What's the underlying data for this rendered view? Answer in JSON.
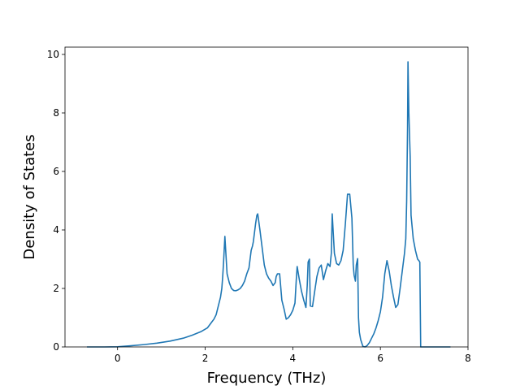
{
  "chart_data": {
    "type": "line",
    "title": "",
    "xlabel": "Frequency (THz)",
    "ylabel": "Density of States",
    "xlim": [
      -1.2,
      8
    ],
    "ylim": [
      0,
      10.25
    ],
    "xticks": [
      0,
      2,
      4,
      6,
      8
    ],
    "yticks": [
      0,
      2,
      4,
      6,
      8,
      10
    ],
    "grid": false,
    "line_color": "#1f77b4",
    "series": [
      {
        "name": "",
        "x": [
          -0.7,
          -0.3,
          0,
          0.3,
          0.6,
          0.9,
          1.2,
          1.5,
          1.7,
          1.9,
          2.05,
          2.15,
          2.2,
          2.25,
          2.3,
          2.35,
          2.38,
          2.4,
          2.42,
          2.45,
          2.5,
          2.55,
          2.6,
          2.65,
          2.7,
          2.75,
          2.8,
          2.85,
          2.9,
          2.95,
          3.0,
          3.05,
          3.08,
          3.1,
          3.15,
          3.18,
          3.2,
          3.25,
          3.3,
          3.35,
          3.4,
          3.45,
          3.5,
          3.55,
          3.6,
          3.62,
          3.65,
          3.7,
          3.75,
          3.8,
          3.85,
          3.9,
          3.95,
          4.0,
          4.05,
          4.08,
          4.1,
          4.15,
          4.2,
          4.25,
          4.3,
          4.33,
          4.35,
          4.38,
          4.4,
          4.45,
          4.5,
          4.55,
          4.6,
          4.65,
          4.7,
          4.75,
          4.8,
          4.85,
          4.88,
          4.9,
          4.95,
          5.0,
          5.05,
          5.1,
          5.15,
          5.2,
          5.25,
          5.3,
          5.35,
          5.38,
          5.4,
          5.43,
          5.45,
          5.48,
          5.5,
          5.52,
          5.55,
          5.6,
          5.65,
          5.7,
          5.75,
          5.8,
          5.85,
          5.9,
          5.95,
          6.0,
          6.05,
          6.1,
          6.15,
          6.2,
          6.25,
          6.3,
          6.35,
          6.4,
          6.45,
          6.5,
          6.55,
          6.58,
          6.6,
          6.62,
          6.63,
          6.65,
          6.68,
          6.7,
          6.75,
          6.8,
          6.85,
          6.88,
          6.9,
          6.92,
          7.0,
          7.3,
          7.6
        ],
        "y": [
          0,
          0,
          0.005,
          0.04,
          0.08,
          0.13,
          0.2,
          0.3,
          0.4,
          0.52,
          0.65,
          0.85,
          0.95,
          1.1,
          1.4,
          1.7,
          2.0,
          2.4,
          2.9,
          3.78,
          2.5,
          2.2,
          2.0,
          1.93,
          1.92,
          1.95,
          2.0,
          2.1,
          2.25,
          2.5,
          2.7,
          3.3,
          3.45,
          3.6,
          4.2,
          4.5,
          4.55,
          4.0,
          3.4,
          2.8,
          2.5,
          2.35,
          2.25,
          2.1,
          2.2,
          2.4,
          2.5,
          2.5,
          1.6,
          1.3,
          0.95,
          1.0,
          1.1,
          1.25,
          1.5,
          2.3,
          2.75,
          2.3,
          1.9,
          1.6,
          1.35,
          2.1,
          2.9,
          3.0,
          1.4,
          1.38,
          1.9,
          2.4,
          2.7,
          2.8,
          2.3,
          2.6,
          2.85,
          2.75,
          3.2,
          4.55,
          3.2,
          2.85,
          2.8,
          2.95,
          3.3,
          4.2,
          5.22,
          5.22,
          4.4,
          2.8,
          2.45,
          2.25,
          2.8,
          3.02,
          1.0,
          0.5,
          0.25,
          0.02,
          0,
          0.05,
          0.15,
          0.3,
          0.45,
          0.65,
          0.9,
          1.2,
          1.7,
          2.5,
          2.95,
          2.6,
          2.1,
          1.7,
          1.35,
          1.45,
          2.0,
          2.6,
          3.2,
          3.7,
          5.0,
          7.5,
          9.75,
          8.0,
          6.5,
          4.5,
          3.7,
          3.3,
          3.0,
          2.95,
          2.9,
          0,
          0,
          0,
          0
        ]
      }
    ]
  }
}
